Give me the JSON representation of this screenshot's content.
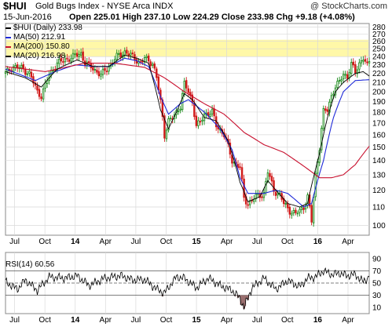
{
  "header": {
    "symbol": "$HUI",
    "name": "Gold Bugs Index - NYSE Arca INDX",
    "watermark": "@ StockCharts.com",
    "date": "15-Jun-2016",
    "ohlc_text": "Open 225.01  High 237.10  Low 224.29  Close 233.98  Chg +9.18 (+4.08%)",
    "up_arrow_color": "#2a8a2a"
  },
  "legend": [
    {
      "label": "$HUI (Daily) 233.98",
      "color": "#000000"
    },
    {
      "label": "MA(50) 212.91",
      "color": "#1f2ad8"
    },
    {
      "label": "MA(200) 150.80",
      "color": "#c8102e"
    },
    {
      "label": "MA(20) 216.98",
      "color": "#000000"
    }
  ],
  "colors": {
    "up": "#1a8a1a",
    "down": "#d11a1a",
    "ma50": "#1f2ad8",
    "ma200": "#c8102e",
    "ma20": "#000000",
    "highlight": "#fff8a8",
    "grid": "#d9d9d9",
    "rsi_line": "#000000",
    "rsi_fill": "#9a6f6f"
  },
  "rsi": {
    "label": "RSI(14) 60.56"
  },
  "chart_data": [
    {
      "type": "candlestick",
      "title": "$HUI Gold Bugs Index - NYSE Arca INDX",
      "x_ticks": [
        "Jul",
        "Oct",
        "14",
        "Apr",
        "Jul",
        "Oct",
        "15",
        "Apr",
        "Jul",
        "Oct",
        "16",
        "Apr"
      ],
      "y_ticks": [
        100,
        110,
        120,
        130,
        140,
        150,
        160,
        170,
        180,
        190,
        200,
        210,
        220,
        230,
        240,
        250,
        260,
        270,
        280
      ],
      "y_scale": "log",
      "ylim": [
        95,
        285
      ],
      "highlight_band": [
        240,
        262
      ],
      "series": [
        {
          "name": "$HUI (Daily)",
          "anchors": [
            [
              0,
              220
            ],
            [
              4,
              228
            ],
            [
              8,
              226
            ],
            [
              12,
              220
            ],
            [
              16,
              200
            ],
            [
              18,
              196
            ],
            [
              22,
              218
            ],
            [
              26,
              232
            ],
            [
              30,
              236
            ],
            [
              34,
              240
            ],
            [
              38,
              244
            ],
            [
              40,
              232
            ],
            [
              44,
              226
            ],
            [
              48,
              218
            ],
            [
              52,
              228
            ],
            [
              56,
              240
            ],
            [
              60,
              246
            ],
            [
              64,
              240
            ],
            [
              68,
              232
            ],
            [
              70,
              238
            ],
            [
              74,
              232
            ],
            [
              76,
              215
            ],
            [
              78,
              190
            ],
            [
              80,
              160
            ],
            [
              82,
              172
            ],
            [
              84,
              174
            ],
            [
              88,
              186
            ],
            [
              90,
              208
            ],
            [
              92,
              200
            ],
            [
              94,
              190
            ],
            [
              96,
              168
            ],
            [
              98,
              170
            ],
            [
              100,
              178
            ],
            [
              104,
              180
            ],
            [
              106,
              168
            ],
            [
              110,
              160
            ],
            [
              114,
              140
            ],
            [
              118,
              135
            ],
            [
              120,
              115
            ],
            [
              122,
              112
            ],
            [
              126,
              116
            ],
            [
              130,
              118
            ],
            [
              132,
              132
            ],
            [
              135,
              120
            ],
            [
              138,
              117
            ],
            [
              140,
              112
            ],
            [
              143,
              108
            ],
            [
              146,
              106
            ],
            [
              150,
              110
            ],
            [
              152,
              116
            ],
            [
              154,
              102
            ],
            [
              156,
              130
            ],
            [
              158,
              150
            ],
            [
              160,
              180
            ],
            [
              162,
              182
            ],
            [
              164,
              196
            ],
            [
              166,
              205
            ],
            [
              168,
              210
            ],
            [
              170,
              220
            ],
            [
              172,
              216
            ],
            [
              174,
              230
            ],
            [
              176,
              222
            ],
            [
              178,
              232
            ],
            [
              180,
              238
            ],
            [
              182,
              228
            ],
            [
              183,
              233.98
            ]
          ]
        },
        {
          "name": "MA(50)",
          "anchors": [
            [
              0,
              225
            ],
            [
              15,
              212
            ],
            [
              25,
              222
            ],
            [
              35,
              230
            ],
            [
              45,
              228
            ],
            [
              52,
              228
            ],
            [
              60,
              238
            ],
            [
              66,
              235
            ],
            [
              72,
              228
            ],
            [
              78,
              195
            ],
            [
              82,
              178
            ],
            [
              88,
              188
            ],
            [
              92,
              192
            ],
            [
              100,
              180
            ],
            [
              108,
              165
            ],
            [
              114,
              148
            ],
            [
              118,
              128
            ],
            [
              122,
              118
            ],
            [
              130,
              118
            ],
            [
              136,
              120
            ],
            [
              142,
              118
            ],
            [
              150,
              110
            ],
            [
              154,
              112
            ],
            [
              160,
              140
            ],
            [
              165,
              175
            ],
            [
              170,
              200
            ],
            [
              176,
              212
            ],
            [
              183,
              212.91
            ]
          ]
        },
        {
          "name": "MA(200)",
          "anchors": [
            [
              0,
              228
            ],
            [
              20,
              222
            ],
            [
              40,
              232
            ],
            [
              55,
              232
            ],
            [
              70,
              227
            ],
            [
              80,
              215
            ],
            [
              90,
              200
            ],
            [
              100,
              188
            ],
            [
              110,
              178
            ],
            [
              120,
              162
            ],
            [
              130,
              152
            ],
            [
              140,
              146
            ],
            [
              150,
              136
            ],
            [
              158,
              128
            ],
            [
              164,
              128
            ],
            [
              170,
              130
            ],
            [
              176,
              137
            ],
            [
              183,
              150.8
            ]
          ]
        },
        {
          "name": "MA(20)",
          "anchors": [
            [
              0,
              222
            ],
            [
              10,
              215
            ],
            [
              18,
              205
            ],
            [
              26,
              225
            ],
            [
              36,
              236
            ],
            [
              44,
              228
            ],
            [
              52,
              228
            ],
            [
              60,
              242
            ],
            [
              66,
              238
            ],
            [
              72,
              232
            ],
            [
              78,
              182
            ],
            [
              82,
              165
            ],
            [
              86,
              180
            ],
            [
              90,
              198
            ],
            [
              94,
              192
            ],
            [
              100,
              175
            ],
            [
              106,
              172
            ],
            [
              112,
              155
            ],
            [
              118,
              125
            ],
            [
              122,
              113
            ],
            [
              128,
              116
            ],
            [
              132,
              126
            ],
            [
              136,
              120
            ],
            [
              142,
              112
            ],
            [
              148,
              110
            ],
            [
              152,
              112
            ],
            [
              158,
              145
            ],
            [
              162,
              175
            ],
            [
              166,
              200
            ],
            [
              170,
              210
            ],
            [
              176,
              220
            ],
            [
              180,
              222
            ],
            [
              183,
              216.98
            ]
          ]
        }
      ]
    },
    {
      "type": "line",
      "title": "RSI(14)",
      "x_ticks": [
        "Jul",
        "Oct",
        "14",
        "Apr",
        "Jul",
        "Oct",
        "15",
        "Apr",
        "Jul",
        "Oct",
        "16",
        "Apr"
      ],
      "y_ticks": [
        10,
        30,
        50,
        70,
        90
      ],
      "ylim": [
        0,
        100
      ],
      "reference_lines": [
        30,
        50,
        70
      ],
      "series": [
        {
          "name": "RSI(14)",
          "anchors": [
            [
              0,
              52
            ],
            [
              6,
              40
            ],
            [
              10,
              55
            ],
            [
              16,
              38
            ],
            [
              22,
              60
            ],
            [
              30,
              58
            ],
            [
              36,
              62
            ],
            [
              42,
              46
            ],
            [
              50,
              58
            ],
            [
              58,
              62
            ],
            [
              64,
              55
            ],
            [
              70,
              56
            ],
            [
              76,
              40
            ],
            [
              80,
              34
            ],
            [
              86,
              60
            ],
            [
              90,
              58
            ],
            [
              96,
              42
            ],
            [
              102,
              58
            ],
            [
              108,
              46
            ],
            [
              114,
              38
            ],
            [
              118,
              25
            ],
            [
              120,
              10
            ],
            [
              124,
              42
            ],
            [
              130,
              58
            ],
            [
              136,
              40
            ],
            [
              142,
              54
            ],
            [
              148,
              44
            ],
            [
              152,
              58
            ],
            [
              156,
              60
            ],
            [
              160,
              70
            ],
            [
              164,
              64
            ],
            [
              168,
              66
            ],
            [
              172,
              62
            ],
            [
              176,
              64
            ],
            [
              180,
              52
            ],
            [
              183,
              60.56
            ]
          ]
        }
      ]
    }
  ]
}
